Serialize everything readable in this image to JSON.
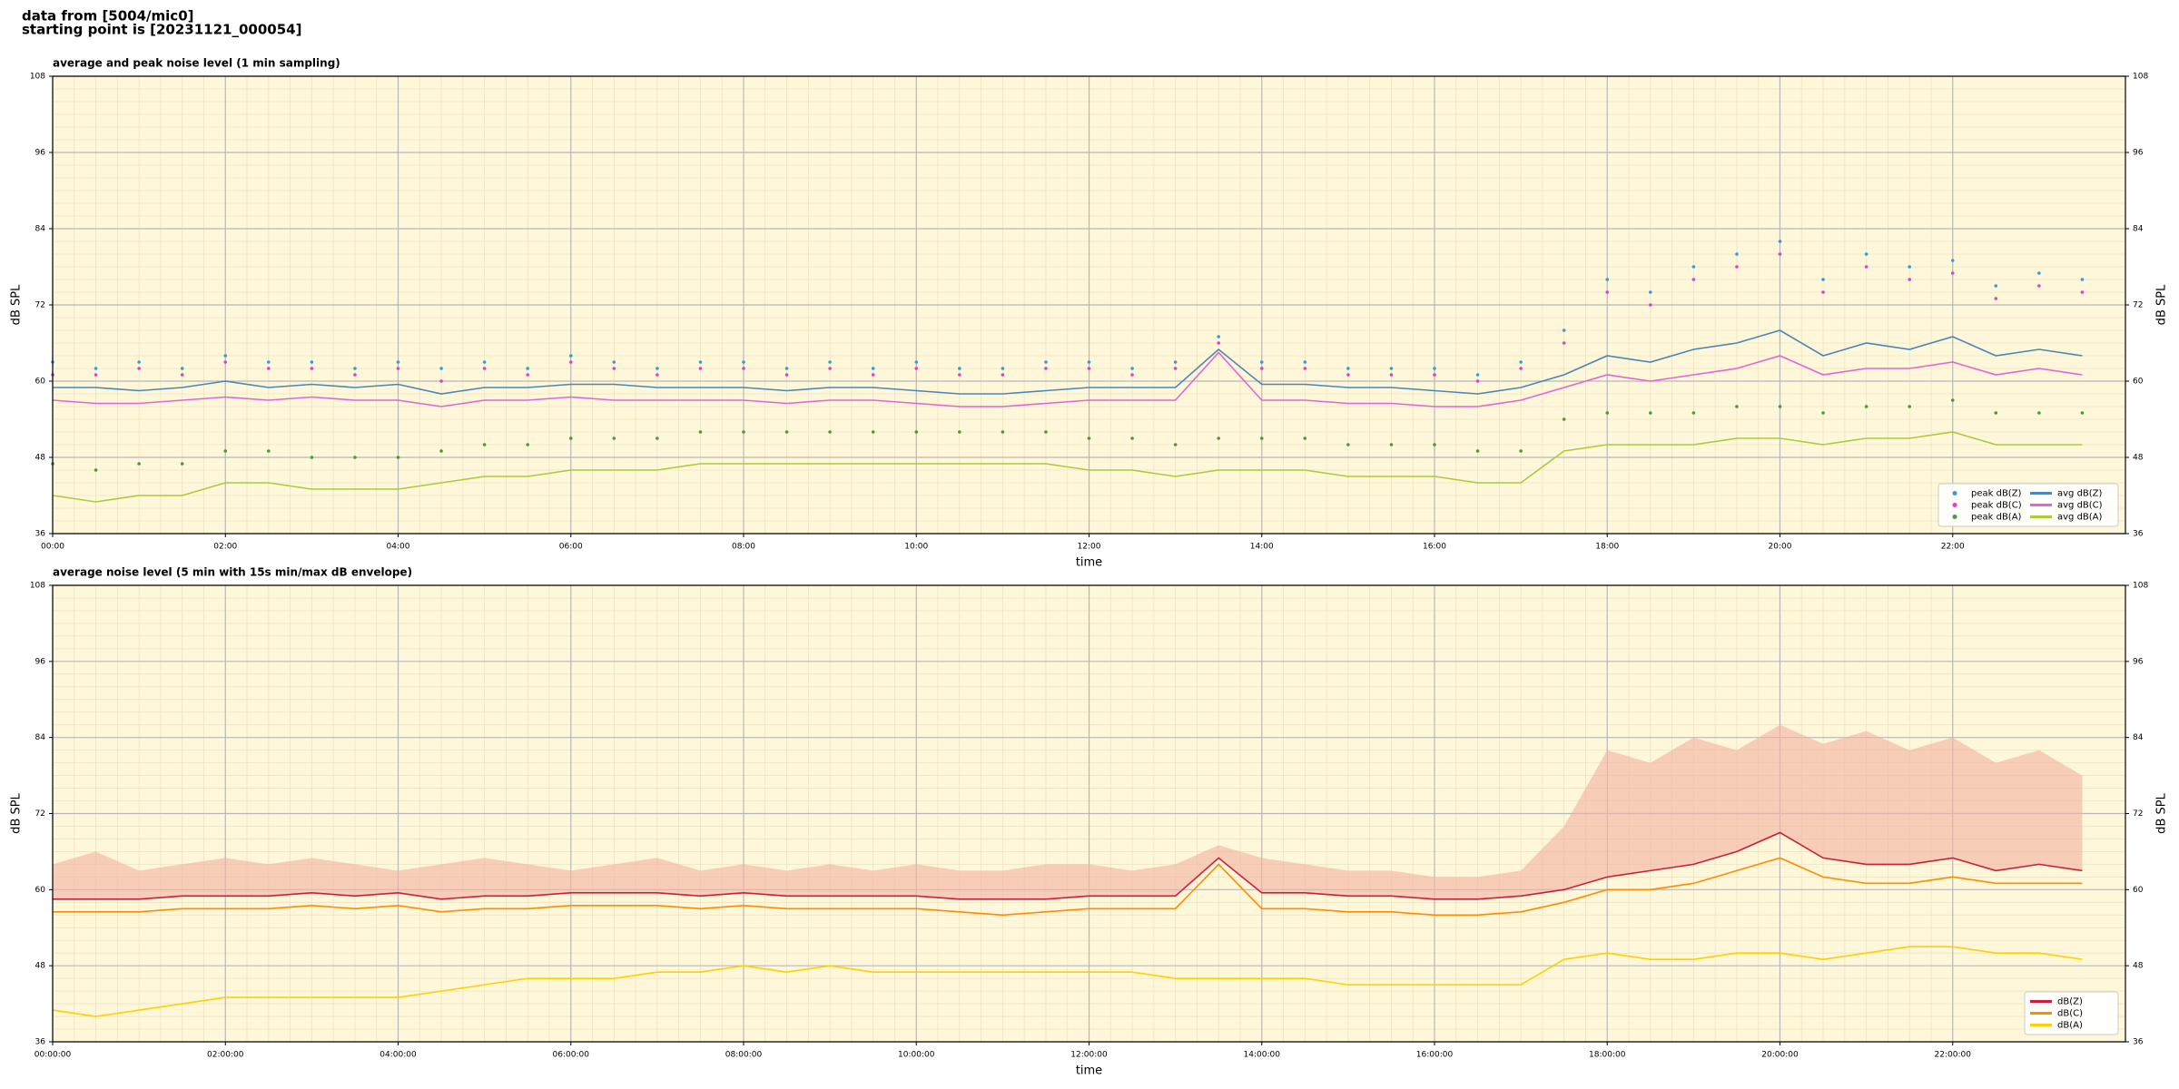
{
  "header": {
    "lines": [
      "data from [5004/mic0]",
      "starting point is [20231121_000054]"
    ]
  },
  "chart_data": [
    {
      "type": "line",
      "title": "average and peak noise level (1 min sampling)",
      "xlabel": "time",
      "ylabel": "dB SPL",
      "x": [
        0,
        0.5,
        1,
        1.5,
        2,
        2.5,
        3,
        3.5,
        4,
        4.5,
        5,
        5.5,
        6,
        6.5,
        7,
        7.5,
        8,
        8.5,
        9,
        9.5,
        10,
        10.5,
        11,
        11.5,
        12,
        12.5,
        13,
        13.5,
        14,
        14.5,
        15,
        15.5,
        16,
        16.5,
        17,
        17.5,
        18,
        18.5,
        19,
        19.5,
        20,
        20.5,
        21,
        21.5,
        22,
        22.5,
        23,
        23.5
      ],
      "xlim": [
        0,
        24
      ],
      "xticks": [
        {
          "value": 0,
          "label": "00:00"
        },
        {
          "value": 2,
          "label": "02:00"
        },
        {
          "value": 4,
          "label": "04:00"
        },
        {
          "value": 6,
          "label": "06:00"
        },
        {
          "value": 8,
          "label": "08:00"
        },
        {
          "value": 10,
          "label": "10:00"
        },
        {
          "value": 12,
          "label": "12:00"
        },
        {
          "value": 14,
          "label": "14:00"
        },
        {
          "value": 16,
          "label": "16:00"
        },
        {
          "value": 18,
          "label": "18:00"
        },
        {
          "value": 20,
          "label": "20:00"
        },
        {
          "value": 22,
          "label": "22:00"
        }
      ],
      "ylim": [
        36,
        108
      ],
      "yticks": [
        36,
        48,
        60,
        72,
        84,
        96,
        108
      ],
      "grid": true,
      "legend": "lower right",
      "series": [
        {
          "name": "peak dB(Z)",
          "type": "scatter",
          "color": "#2f9fd8",
          "values": [
            63,
            62,
            63,
            62,
            64,
            63,
            63,
            62,
            63,
            62,
            63,
            62,
            64,
            63,
            62,
            63,
            63,
            62,
            63,
            62,
            63,
            62,
            62,
            63,
            63,
            62,
            63,
            67,
            63,
            63,
            62,
            62,
            62,
            61,
            63,
            68,
            76,
            74,
            78,
            80,
            82,
            76,
            80,
            78,
            79,
            75,
            77,
            76
          ]
        },
        {
          "name": "peak dB(C)",
          "type": "scatter",
          "color": "#e040c8",
          "values": [
            61,
            61,
            62,
            61,
            63,
            62,
            62,
            61,
            62,
            60,
            62,
            61,
            63,
            62,
            61,
            62,
            62,
            61,
            62,
            61,
            62,
            61,
            61,
            62,
            62,
            61,
            62,
            66,
            62,
            62,
            61,
            61,
            61,
            60,
            62,
            66,
            74,
            72,
            76,
            78,
            80,
            74,
            78,
            76,
            77,
            73,
            75,
            74
          ]
        },
        {
          "name": "peak dB(A)",
          "type": "scatter",
          "color": "#4a9a3a",
          "values": [
            47,
            46,
            47,
            47,
            49,
            49,
            48,
            48,
            48,
            49,
            50,
            50,
            51,
            51,
            51,
            52,
            52,
            52,
            52,
            52,
            52,
            52,
            52,
            52,
            51,
            51,
            50,
            51,
            51,
            51,
            50,
            50,
            50,
            49,
            49,
            54,
            55,
            55,
            55,
            56,
            56,
            55,
            56,
            56,
            57,
            55,
            55,
            55
          ]
        },
        {
          "name": "avg dB(Z)",
          "type": "line",
          "color": "#4a86b8",
          "values": [
            59,
            59,
            58.5,
            59,
            60,
            59,
            59.5,
            59,
            59.5,
            58,
            59,
            59,
            59.5,
            59.5,
            59,
            59,
            59,
            58.5,
            59,
            59,
            58.5,
            58,
            58,
            58.5,
            59,
            59,
            59,
            65,
            59.5,
            59.5,
            59,
            59,
            58.5,
            58,
            59,
            61,
            64,
            63,
            65,
            66,
            68,
            64,
            66,
            65,
            67,
            64,
            65,
            64
          ]
        },
        {
          "name": "avg dB(C)",
          "type": "line",
          "color": "#e066d6",
          "values": [
            57,
            56.5,
            56.5,
            57,
            57.5,
            57,
            57.5,
            57,
            57,
            56,
            57,
            57,
            57.5,
            57,
            57,
            57,
            57,
            56.5,
            57,
            57,
            56.5,
            56,
            56,
            56.5,
            57,
            57,
            57,
            64.5,
            57,
            57,
            56.5,
            56.5,
            56,
            56,
            57,
            59,
            61,
            60,
            61,
            62,
            64,
            61,
            62,
            62,
            63,
            61,
            62,
            61
          ]
        },
        {
          "name": "avg dB(A)",
          "type": "line",
          "color": "#a8cc3a",
          "values": [
            42,
            41,
            42,
            42,
            44,
            44,
            43,
            43,
            43,
            44,
            45,
            45,
            46,
            46,
            46,
            47,
            47,
            47,
            47,
            47,
            47,
            47,
            47,
            47,
            46,
            46,
            45,
            46,
            46,
            46,
            45,
            45,
            45,
            44,
            44,
            49,
            50,
            50,
            50,
            51,
            51,
            50,
            51,
            51,
            52,
            50,
            50,
            50
          ]
        }
      ]
    },
    {
      "type": "line",
      "title": "average noise level (5 min with 15s min/max dB envelope)",
      "xlabel": "time",
      "ylabel": "dB SPL",
      "x": [
        0,
        0.5,
        1,
        1.5,
        2,
        2.5,
        3,
        3.5,
        4,
        4.5,
        5,
        5.5,
        6,
        6.5,
        7,
        7.5,
        8,
        8.5,
        9,
        9.5,
        10,
        10.5,
        11,
        11.5,
        12,
        12.5,
        13,
        13.5,
        14,
        14.5,
        15,
        15.5,
        16,
        16.5,
        17,
        17.5,
        18,
        18.5,
        19,
        19.5,
        20,
        20.5,
        21,
        21.5,
        22,
        22.5,
        23,
        23.5
      ],
      "xlim": [
        0,
        24
      ],
      "xticks": [
        {
          "value": 0,
          "label": "00:00:00"
        },
        {
          "value": 2,
          "label": "02:00:00"
        },
        {
          "value": 4,
          "label": "04:00:00"
        },
        {
          "value": 6,
          "label": "06:00:00"
        },
        {
          "value": 8,
          "label": "08:00:00"
        },
        {
          "value": 10,
          "label": "10:00:00"
        },
        {
          "value": 12,
          "label": "12:00:00"
        },
        {
          "value": 14,
          "label": "14:00:00"
        },
        {
          "value": 16,
          "label": "16:00:00"
        },
        {
          "value": 18,
          "label": "18:00:00"
        },
        {
          "value": 20,
          "label": "20:00:00"
        },
        {
          "value": 22,
          "label": "22:00:00"
        }
      ],
      "ylim": [
        36,
        108
      ],
      "yticks": [
        36,
        48,
        60,
        72,
        84,
        96,
        108
      ],
      "grid": true,
      "legend": "lower right",
      "envelope": {
        "color": "#f4b0a0",
        "values": [
          64,
          66,
          63,
          64,
          65,
          64,
          65,
          64,
          63,
          64,
          65,
          64,
          63,
          64,
          65,
          63,
          64,
          63,
          64,
          63,
          64,
          63,
          63,
          64,
          64,
          63,
          64,
          67,
          65,
          64,
          63,
          63,
          62,
          62,
          63,
          70,
          82,
          80,
          84,
          82,
          86,
          83,
          85,
          82,
          84,
          80,
          82,
          78
        ]
      },
      "series": [
        {
          "name": "dB(Z)",
          "type": "line",
          "color": "#d01c3c",
          "values": [
            58.5,
            58.5,
            58.5,
            59,
            59,
            59,
            59.5,
            59,
            59.5,
            58.5,
            59,
            59,
            59.5,
            59.5,
            59.5,
            59,
            59.5,
            59,
            59,
            59,
            59,
            58.5,
            58.5,
            58.5,
            59,
            59,
            59,
            65,
            59.5,
            59.5,
            59,
            59,
            58.5,
            58.5,
            59,
            60,
            62,
            63,
            64,
            66,
            69,
            65,
            64,
            64,
            65,
            63,
            64,
            63
          ]
        },
        {
          "name": "dB(C)",
          "type": "line",
          "color": "#ff8c00",
          "values": [
            56.5,
            56.5,
            56.5,
            57,
            57,
            57,
            57.5,
            57,
            57.5,
            56.5,
            57,
            57,
            57.5,
            57.5,
            57.5,
            57,
            57.5,
            57,
            57,
            57,
            57,
            56.5,
            56,
            56.5,
            57,
            57,
            57,
            64,
            57,
            57,
            56.5,
            56.5,
            56,
            56,
            56.5,
            58,
            60,
            60,
            61,
            63,
            65,
            62,
            61,
            61,
            62,
            61,
            61,
            61
          ]
        },
        {
          "name": "dB(A)",
          "type": "line",
          "color": "#ffd000",
          "values": [
            41,
            40,
            41,
            42,
            43,
            43,
            43,
            43,
            43,
            44,
            45,
            46,
            46,
            46,
            47,
            47,
            48,
            47,
            48,
            47,
            47,
            47,
            47,
            47,
            47,
            47,
            46,
            46,
            46,
            46,
            45,
            45,
            45,
            45,
            45,
            49,
            50,
            49,
            49,
            50,
            50,
            49,
            50,
            51,
            51,
            50,
            50,
            49
          ]
        }
      ]
    }
  ]
}
